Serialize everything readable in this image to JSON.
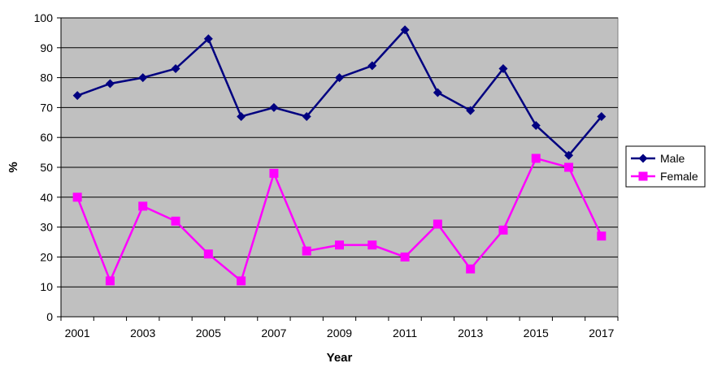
{
  "chart_data": {
    "type": "line",
    "xlabel": "Year",
    "ylabel": "%",
    "x": [
      2001,
      2002,
      2003,
      2004,
      2005,
      2006,
      2007,
      2008,
      2009,
      2010,
      2011,
      2012,
      2013,
      2014,
      2015,
      2016,
      2017
    ],
    "x_tick_labels": [
      "2001",
      "2003",
      "2005",
      "2007",
      "2009",
      "2011",
      "2013",
      "2015",
      "2017"
    ],
    "ylim": [
      0,
      100
    ],
    "y_ticks": [
      0,
      10,
      20,
      30,
      40,
      50,
      60,
      70,
      80,
      90,
      100
    ],
    "grid": "horizontal",
    "plot_background": "#C0C0C0",
    "legend_position": "right",
    "series": [
      {
        "name": "Male",
        "color": "#000080",
        "marker": "diamond",
        "values": [
          74,
          78,
          80,
          83,
          93,
          67,
          70,
          67,
          80,
          84,
          96,
          75,
          69,
          83,
          64,
          54,
          67
        ]
      },
      {
        "name": "Female",
        "color": "#FF00FF",
        "marker": "square",
        "values": [
          40,
          12,
          37,
          32,
          21,
          12,
          48,
          22,
          24,
          24,
          20,
          31,
          16,
          29,
          53,
          50,
          27
        ]
      }
    ]
  }
}
